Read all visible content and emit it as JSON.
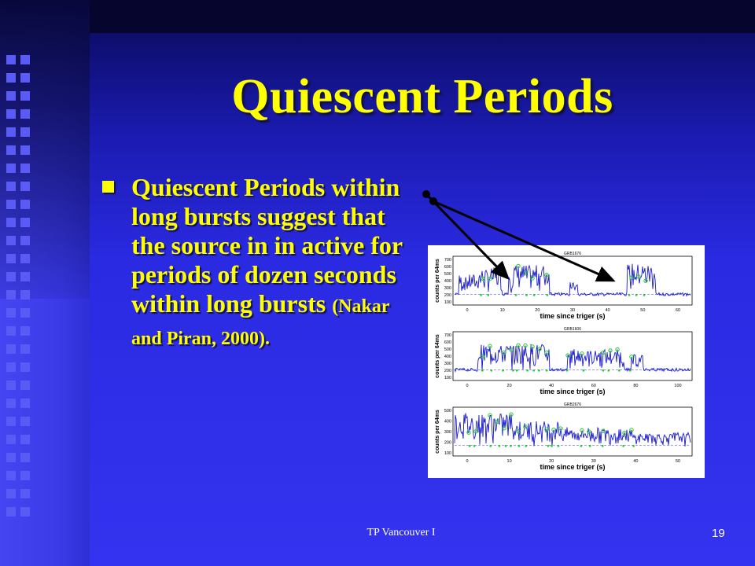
{
  "slide": {
    "title": "Quiescent Periods",
    "bullet_main": "Quiescent Periods within long bursts suggest that the source in in active for periods of dozen seconds within long bursts",
    "bullet_citation": "(Nakar and Piran, 2000).",
    "footer": "TP Vancouver I",
    "page_number": "19"
  },
  "figure": {
    "panels": [
      {
        "title": "GRB1676",
        "ylabel": "counts per 64ms",
        "xlabel": "time since triger (s)",
        "yticks": [
          "700",
          "600",
          "500",
          "400",
          "300",
          "200",
          "100"
        ],
        "xticks": [
          "0",
          "10",
          "20",
          "30",
          "40",
          "50",
          "60"
        ]
      },
      {
        "title": "GRB1606",
        "ylabel": "counts per 64ms",
        "xlabel": "time since triger (s)",
        "yticks": [
          "700",
          "600",
          "500",
          "400",
          "300",
          "200",
          "100"
        ],
        "xticks": [
          "0",
          "20",
          "40",
          "60",
          "80",
          "100"
        ]
      },
      {
        "title": "GRB2676",
        "ylabel": "counts per 64ms",
        "xlabel": "time since triger (s)",
        "yticks": [
          "500",
          "400",
          "300",
          "200",
          "100"
        ],
        "xticks": [
          "0",
          "10",
          "20",
          "30",
          "40",
          "50"
        ]
      }
    ]
  },
  "colors": {
    "title": "#ffff00",
    "text": "#ffff00",
    "curve": "#1a1ad0",
    "peaks": "#22cc22",
    "background": "#2e2ee0"
  }
}
